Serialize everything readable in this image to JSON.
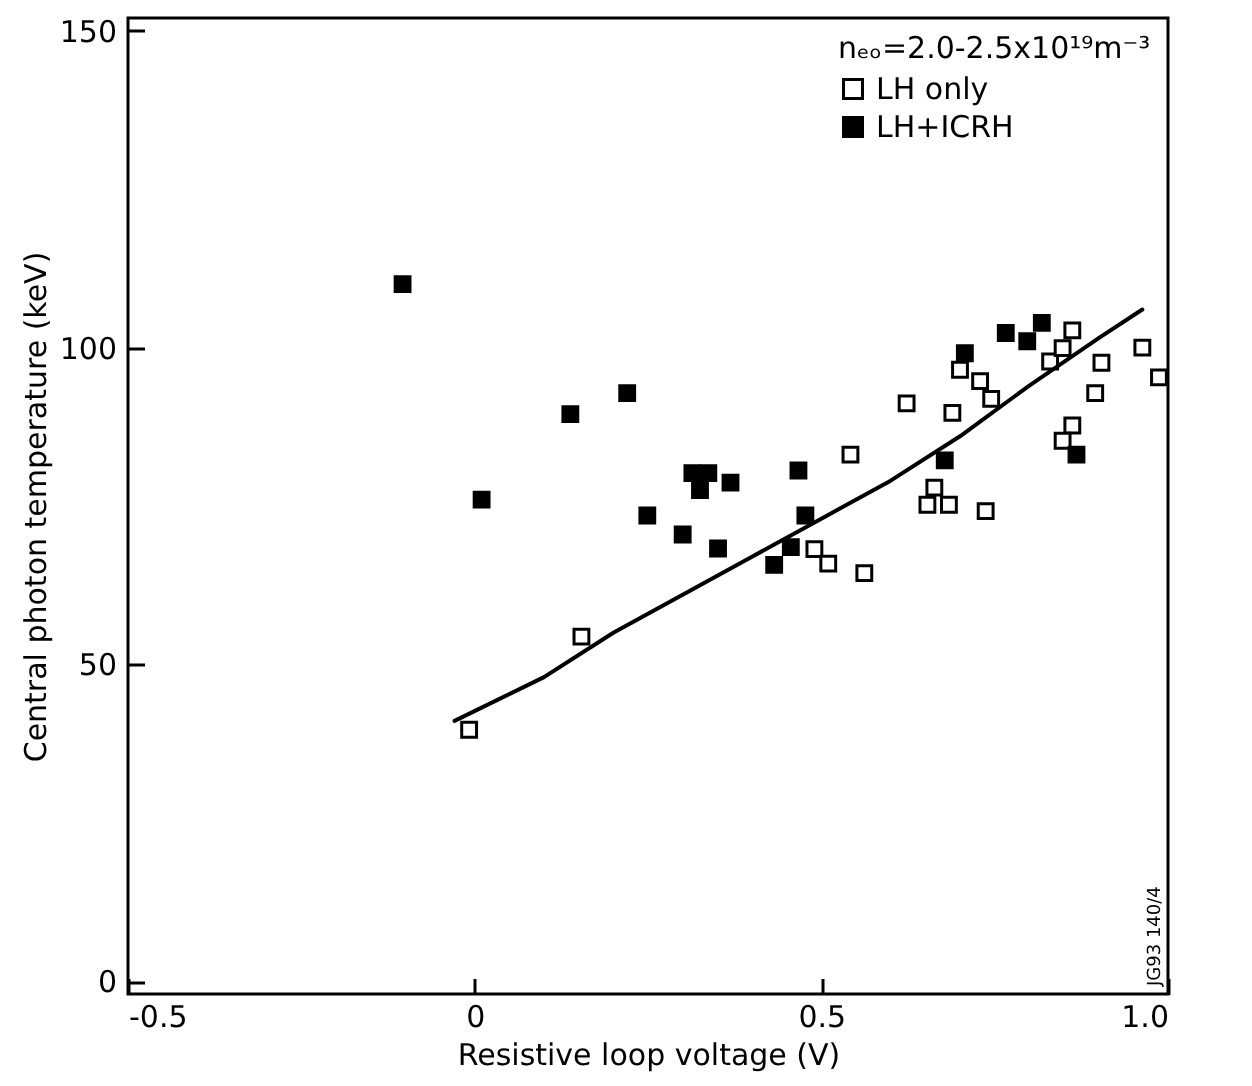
{
  "chart_data": {
    "type": "scatter",
    "xlabel": "Resistive loop voltage (V)",
    "ylabel": "Central photon temperature (keV)",
    "legend_title": "nₑₒ=2.0-2.5x10¹⁹m⁻³",
    "xlim": [
      -0.5,
      1.0
    ],
    "xticks": [
      -0.5,
      0,
      0.5,
      {
        "value": 1,
        "label": "1.0"
      }
    ],
    "ylim": [
      -2,
      152
    ],
    "yticks": [
      0,
      50,
      100,
      150
    ],
    "grid": false,
    "legend": "top right",
    "marker": "square",
    "annotations": [
      "JG93 140/4"
    ],
    "series": [
      {
        "name": "LH only",
        "color": "#000000",
        "x": [
          -0.008,
          0.154,
          0.49,
          0.51,
          0.562,
          0.542,
          0.623,
          0.663,
          0.653,
          0.684,
          0.689,
          0.7,
          0.729,
          0.745,
          0.737,
          0.83,
          0.848,
          0.862,
          0.904,
          0.895,
          0.862,
          0.848,
          0.963,
          0.987
        ],
        "values": [
          39.7,
          54.4,
          68.2,
          65.9,
          64.4,
          83.1,
          91.2,
          77.9,
          75.2,
          75.2,
          89.7,
          96.5,
          94.7,
          91.9,
          74.2,
          97.8,
          99.9,
          102.7,
          97.6,
          92.8,
          87.7,
          85.3,
          100,
          95.3
        ]
      },
      {
        "name": "LH+ICRH",
        "color": "#000000",
        "x": [
          -0.104,
          0.01,
          0.138,
          0.22,
          0.249,
          0.3,
          0.314,
          0.337,
          0.325,
          0.351,
          0.369,
          0.432,
          0.456,
          0.467,
          0.477,
          0.678,
          0.707,
          0.766,
          0.797,
          0.818,
          0.868
        ],
        "values": [
          110,
          76,
          89.5,
          92.8,
          73.5,
          70.5,
          80.2,
          80.2,
          77.5,
          68.3,
          78.7,
          65.7,
          68.5,
          80.6,
          73.5,
          82.2,
          99.1,
          102.3,
          101,
          103.9,
          83.1
        ]
      },
      {
        "type": "line",
        "color": "#000000",
        "marker": "none",
        "x": [
          -0.029,
          0.1,
          0.2,
          0.3,
          0.4,
          0.5,
          0.6,
          0.7,
          0.8,
          0.9,
          0.963
        ],
        "values": [
          41.1,
          48,
          55,
          61,
          67,
          73,
          79,
          86,
          94,
          101.5,
          106
        ]
      }
    ]
  }
}
